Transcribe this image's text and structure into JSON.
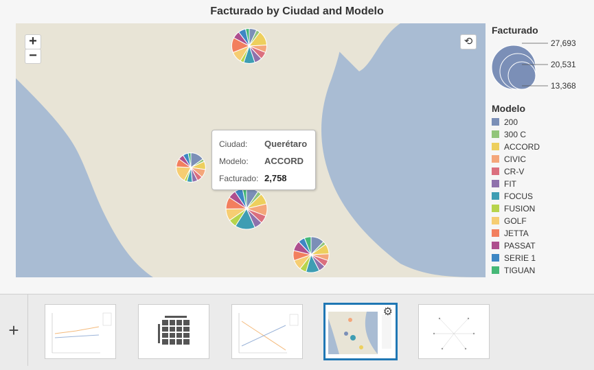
{
  "title": "Facturado by Ciudad and Modelo",
  "controls": {
    "zoom_in": "+",
    "zoom_out": "−",
    "reset": "⟲"
  },
  "tooltip": {
    "rows": [
      {
        "key": "Ciudad:",
        "value": "Querétaro"
      },
      {
        "key": "Modelo:",
        "value": "ACCORD"
      },
      {
        "key": "Facturado:",
        "value": "2,758"
      }
    ]
  },
  "size_legend": {
    "title": "Facturado",
    "labels": [
      "27,693",
      "20,531",
      "13,368"
    ]
  },
  "color_legend": {
    "title": "Modelo",
    "items": [
      {
        "label": "200",
        "color": "#7b8fb7"
      },
      {
        "label": "300 C",
        "color": "#92c57a"
      },
      {
        "label": "ACCORD",
        "color": "#edcf5d"
      },
      {
        "label": "CIVIC",
        "color": "#f4a67a"
      },
      {
        "label": "CR-V",
        "color": "#db6f7e"
      },
      {
        "label": "FIT",
        "color": "#8f71ac"
      },
      {
        "label": "FOCUS",
        "color": "#3e9db3"
      },
      {
        "label": "FUSION",
        "color": "#b7d44c"
      },
      {
        "label": "GOLF",
        "color": "#f6cd72"
      },
      {
        "label": "JETTA",
        "color": "#f27f5e"
      },
      {
        "label": "PASSAT",
        "color": "#ae4f8e"
      },
      {
        "label": "SERIE 1",
        "color": "#3d87c4"
      },
      {
        "label": "TIGUAN",
        "color": "#46b877"
      }
    ]
  },
  "chart_data": {
    "type": "pie",
    "title": "Facturado by Ciudad and Modelo",
    "size_measure": "Facturado",
    "color_dimension": "Modelo",
    "pies": [
      {
        "ciudad": "",
        "total": 20000,
        "values": [
          2,
          1,
          4,
          2,
          2,
          2,
          3,
          1,
          3,
          4,
          2,
          2,
          1
        ]
      },
      {
        "ciudad": "",
        "total": 14000,
        "values": [
          5,
          1,
          3,
          3,
          2,
          2,
          2,
          1,
          6,
          3,
          2,
          2,
          1
        ]
      },
      {
        "ciudad": "Querétaro",
        "total": 27693,
        "values": [
          3,
          1,
          2.758,
          3,
          2,
          2,
          5,
          2,
          3,
          3,
          2,
          2,
          1
        ]
      },
      {
        "ciudad": "",
        "total": 21000,
        "values": [
          4,
          1,
          3,
          2,
          2,
          2,
          4,
          2,
          3,
          3,
          3,
          2,
          2
        ]
      }
    ]
  },
  "tray": {
    "add_label": "+"
  }
}
